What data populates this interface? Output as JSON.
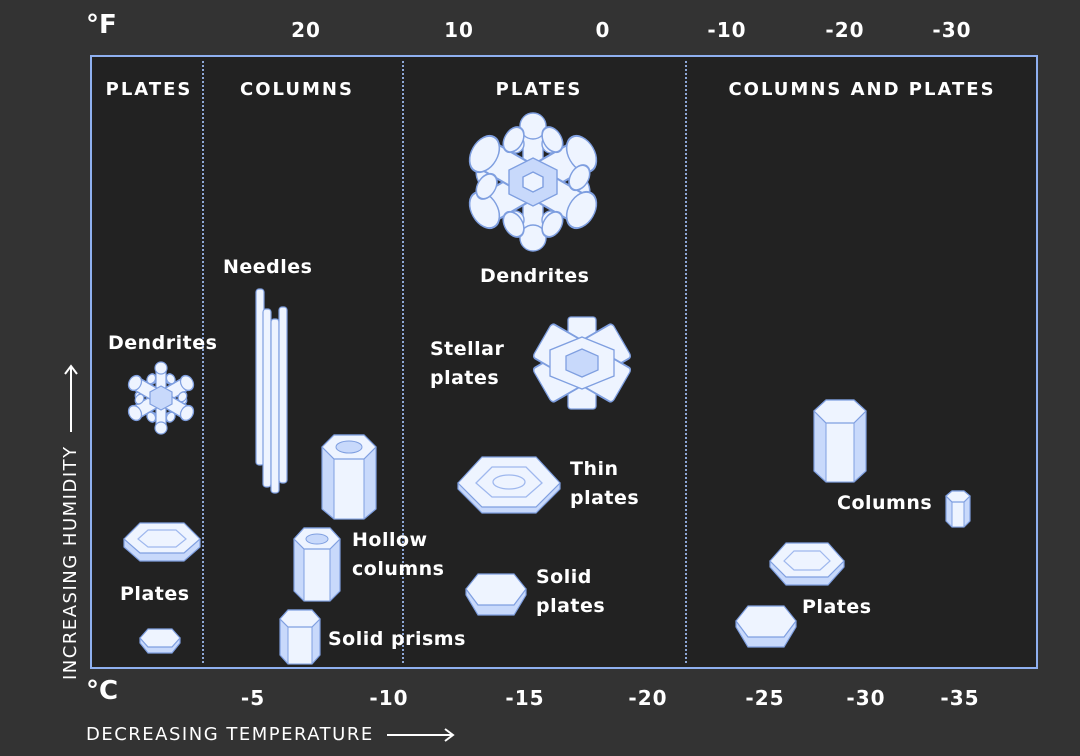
{
  "axes": {
    "fahrenheit_unit": "°F",
    "celsius_unit": "°C",
    "fahrenheit_ticks": [
      "20",
      "10",
      "0",
      "-10",
      "-20",
      "-30"
    ],
    "celsius_ticks": [
      "-5",
      "-10",
      "-15",
      "-20",
      "-25",
      "-30",
      "-35"
    ],
    "x_label": "DECREASING TEMPERATURE",
    "y_label": "INCREASING HUMIDITY"
  },
  "regions": [
    "PLATES",
    "COLUMNS",
    "PLATES",
    "COLUMNS AND PLATES"
  ],
  "crystals": {
    "dendrites_warm": "Dendrites",
    "plates_warm": "Plates",
    "needles": "Needles",
    "hollow_columns": "Hollow\ncolumns",
    "solid_prisms": "Solid prisms",
    "dendrites_cold": "Dendrites",
    "stellar_plates": "Stellar\nplates",
    "thin_plates": "Thin\nplates",
    "solid_plates": "Solid\nplates",
    "columns": "Columns",
    "plates_cold": "Plates"
  },
  "colors": {
    "background": "#333333",
    "panel": "#222222",
    "border": "#8fb0f0",
    "crystal_light": "#eef4ff",
    "crystal_mid": "#c8d9fb",
    "crystal_edge": "#7f9fe0"
  }
}
